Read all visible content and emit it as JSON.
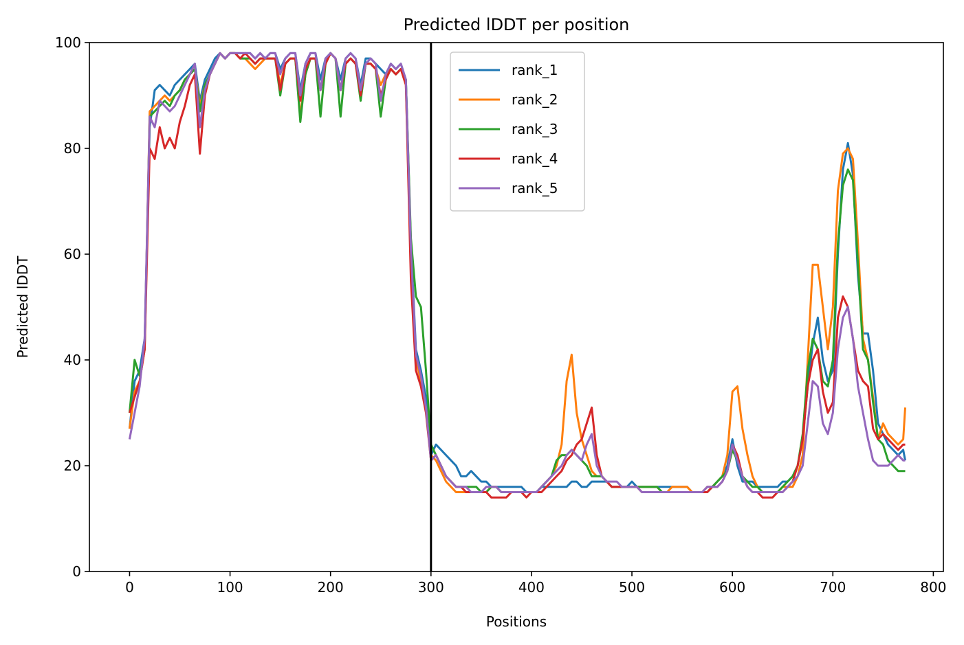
{
  "chart_data": {
    "type": "line",
    "title": "Predicted lDDT per position",
    "xlabel": "Positions",
    "ylabel": "Predicted lDDT",
    "xlim": [
      -40,
      810
    ],
    "ylim": [
      0,
      100
    ],
    "xticks": [
      0,
      100,
      200,
      300,
      400,
      500,
      600,
      700,
      800
    ],
    "yticks": [
      0,
      20,
      40,
      60,
      80,
      100
    ],
    "grid": false,
    "legend_position": "upper-center",
    "vline": 300,
    "x": [
      0,
      5,
      10,
      15,
      20,
      25,
      30,
      35,
      40,
      45,
      50,
      55,
      60,
      65,
      70,
      75,
      80,
      85,
      90,
      95,
      100,
      105,
      110,
      115,
      120,
      125,
      130,
      135,
      140,
      145,
      150,
      155,
      160,
      165,
      170,
      175,
      180,
      185,
      190,
      195,
      200,
      205,
      210,
      215,
      220,
      225,
      230,
      235,
      240,
      245,
      250,
      255,
      260,
      265,
      270,
      275,
      280,
      285,
      290,
      295,
      300,
      305,
      310,
      315,
      320,
      325,
      330,
      335,
      340,
      345,
      350,
      355,
      360,
      365,
      370,
      375,
      380,
      385,
      390,
      395,
      400,
      405,
      410,
      415,
      420,
      425,
      430,
      435,
      440,
      445,
      450,
      455,
      460,
      465,
      470,
      475,
      480,
      485,
      490,
      495,
      500,
      505,
      510,
      515,
      520,
      525,
      530,
      535,
      540,
      545,
      550,
      555,
      560,
      565,
      570,
      575,
      580,
      585,
      590,
      595,
      600,
      605,
      610,
      615,
      620,
      625,
      630,
      635,
      640,
      645,
      650,
      655,
      660,
      665,
      670,
      675,
      680,
      685,
      690,
      695,
      700,
      705,
      710,
      715,
      720,
      725,
      730,
      735,
      740,
      745,
      750,
      755,
      760,
      765,
      770,
      772
    ],
    "series": [
      {
        "name": "rank_1",
        "color": "#1f77b4",
        "values": [
          27,
          36,
          38,
          44,
          84,
          91,
          92,
          91,
          90,
          92,
          93,
          94,
          95,
          96,
          89,
          93,
          95,
          97,
          98,
          97,
          98,
          98,
          98,
          98,
          98,
          97,
          98,
          97,
          98,
          98,
          95,
          97,
          98,
          98,
          91,
          96,
          98,
          98,
          93,
          97,
          98,
          97,
          93,
          97,
          98,
          97,
          92,
          97,
          97,
          96,
          95,
          94,
          96,
          95,
          96,
          93,
          62,
          42,
          38,
          33,
          22,
          24,
          23,
          22,
          21,
          20,
          18,
          18,
          19,
          18,
          17,
          17,
          16,
          16,
          16,
          16,
          16,
          16,
          16,
          15,
          15,
          15,
          16,
          16,
          16,
          16,
          16,
          16,
          17,
          17,
          16,
          16,
          17,
          17,
          17,
          17,
          16,
          16,
          16,
          16,
          17,
          16,
          16,
          16,
          16,
          16,
          16,
          16,
          16,
          16,
          16,
          16,
          15,
          15,
          15,
          16,
          16,
          17,
          18,
          20,
          25,
          20,
          17,
          17,
          17,
          16,
          16,
          16,
          16,
          16,
          17,
          17,
          18,
          20,
          25,
          35,
          43,
          48,
          40,
          36,
          38,
          60,
          76,
          81,
          75,
          56,
          45,
          45,
          38,
          28,
          26,
          24,
          23,
          22,
          23,
          21
        ]
      },
      {
        "name": "rank_2",
        "color": "#ff7f0e",
        "values": [
          27,
          34,
          36,
          42,
          87,
          88,
          89,
          90,
          89,
          90,
          91,
          93,
          94,
          95,
          88,
          92,
          94,
          96,
          98,
          97,
          98,
          98,
          97,
          97,
          96,
          95,
          96,
          97,
          97,
          97,
          92,
          96,
          97,
          97,
          86,
          94,
          97,
          97,
          91,
          96,
          98,
          97,
          91,
          96,
          97,
          96,
          91,
          96,
          96,
          95,
          92,
          94,
          95,
          94,
          95,
          92,
          58,
          40,
          36,
          31,
          22,
          21,
          19,
          17,
          16,
          15,
          15,
          15,
          15,
          15,
          15,
          15,
          16,
          16,
          15,
          15,
          15,
          15,
          15,
          15,
          15,
          15,
          16,
          17,
          18,
          20,
          24,
          36,
          41,
          30,
          25,
          22,
          19,
          18,
          18,
          17,
          16,
          16,
          16,
          16,
          16,
          16,
          16,
          16,
          16,
          16,
          15,
          15,
          16,
          16,
          16,
          16,
          15,
          15,
          15,
          16,
          16,
          17,
          18,
          22,
          34,
          35,
          27,
          22,
          18,
          16,
          15,
          15,
          15,
          15,
          16,
          16,
          16,
          18,
          22,
          40,
          58,
          58,
          50,
          42,
          50,
          72,
          79,
          80,
          78,
          62,
          44,
          40,
          33,
          25,
          28,
          26,
          25,
          24,
          25,
          31
        ]
      },
      {
        "name": "rank_3",
        "color": "#2ca02c",
        "values": [
          30,
          40,
          37,
          42,
          86,
          87,
          88,
          89,
          88,
          90,
          91,
          93,
          94,
          95,
          87,
          92,
          94,
          96,
          98,
          97,
          98,
          98,
          97,
          97,
          97,
          96,
          97,
          97,
          97,
          97,
          90,
          96,
          97,
          97,
          85,
          94,
          97,
          97,
          86,
          96,
          98,
          97,
          86,
          96,
          97,
          96,
          89,
          96,
          96,
          95,
          86,
          93,
          95,
          94,
          95,
          93,
          63,
          52,
          50,
          38,
          24,
          22,
          20,
          18,
          17,
          16,
          16,
          16,
          16,
          16,
          15,
          15,
          16,
          16,
          15,
          15,
          15,
          15,
          15,
          15,
          15,
          15,
          16,
          17,
          18,
          21,
          22,
          22,
          23,
          22,
          21,
          20,
          18,
          18,
          18,
          17,
          16,
          16,
          16,
          16,
          16,
          16,
          16,
          16,
          16,
          16,
          15,
          15,
          15,
          15,
          15,
          15,
          15,
          15,
          15,
          15,
          16,
          17,
          18,
          19,
          23,
          21,
          18,
          17,
          16,
          16,
          15,
          15,
          15,
          15,
          16,
          17,
          18,
          20,
          26,
          38,
          44,
          42,
          36,
          35,
          40,
          62,
          73,
          76,
          74,
          58,
          42,
          40,
          32,
          25,
          24,
          21,
          20,
          19,
          19,
          19
        ]
      },
      {
        "name": "rank_4",
        "color": "#d62728",
        "values": [
          30,
          33,
          36,
          42,
          80,
          78,
          84,
          80,
          82,
          80,
          85,
          88,
          92,
          94,
          79,
          90,
          94,
          96,
          98,
          97,
          98,
          98,
          97,
          98,
          97,
          96,
          97,
          97,
          97,
          97,
          91,
          96,
          97,
          97,
          89,
          95,
          97,
          97,
          91,
          96,
          98,
          97,
          91,
          96,
          97,
          96,
          90,
          96,
          96,
          95,
          90,
          93,
          95,
          94,
          95,
          92,
          55,
          38,
          35,
          30,
          21,
          22,
          20,
          18,
          17,
          16,
          16,
          15,
          15,
          15,
          15,
          15,
          14,
          14,
          14,
          14,
          15,
          15,
          15,
          14,
          15,
          15,
          15,
          16,
          17,
          18,
          19,
          21,
          22,
          24,
          25,
          28,
          31,
          22,
          18,
          17,
          16,
          16,
          16,
          16,
          16,
          16,
          15,
          15,
          15,
          15,
          15,
          15,
          15,
          15,
          15,
          15,
          15,
          15,
          15,
          15,
          16,
          16,
          17,
          19,
          24,
          22,
          18,
          16,
          15,
          15,
          14,
          14,
          14,
          15,
          15,
          16,
          17,
          20,
          25,
          35,
          40,
          42,
          34,
          30,
          32,
          48,
          52,
          50,
          44,
          38,
          36,
          35,
          27,
          25,
          26,
          25,
          24,
          23,
          24,
          24
        ]
      },
      {
        "name": "rank_5",
        "color": "#9467bd",
        "values": [
          25,
          30,
          35,
          44,
          86,
          84,
          89,
          88,
          87,
          88,
          90,
          92,
          94,
          96,
          84,
          91,
          94,
          96,
          98,
          97,
          98,
          98,
          98,
          98,
          98,
          97,
          98,
          97,
          98,
          98,
          94,
          97,
          98,
          98,
          90,
          96,
          98,
          98,
          91,
          97,
          98,
          97,
          91,
          97,
          98,
          97,
          91,
          96,
          97,
          96,
          89,
          94,
          96,
          95,
          96,
          93,
          61,
          41,
          37,
          31,
          21,
          22,
          20,
          18,
          17,
          16,
          16,
          16,
          15,
          15,
          15,
          16,
          16,
          16,
          15,
          15,
          15,
          15,
          15,
          15,
          15,
          15,
          16,
          17,
          18,
          19,
          20,
          22,
          23,
          22,
          21,
          24,
          26,
          20,
          18,
          17,
          17,
          17,
          16,
          16,
          16,
          16,
          15,
          15,
          15,
          15,
          15,
          15,
          15,
          15,
          15,
          15,
          15,
          15,
          15,
          16,
          16,
          16,
          17,
          19,
          24,
          21,
          18,
          16,
          15,
          15,
          15,
          15,
          15,
          15,
          15,
          16,
          17,
          18,
          20,
          28,
          36,
          35,
          28,
          26,
          30,
          42,
          48,
          50,
          44,
          35,
          30,
          25,
          21,
          20,
          20,
          20,
          21,
          22,
          21,
          21
        ]
      }
    ]
  }
}
